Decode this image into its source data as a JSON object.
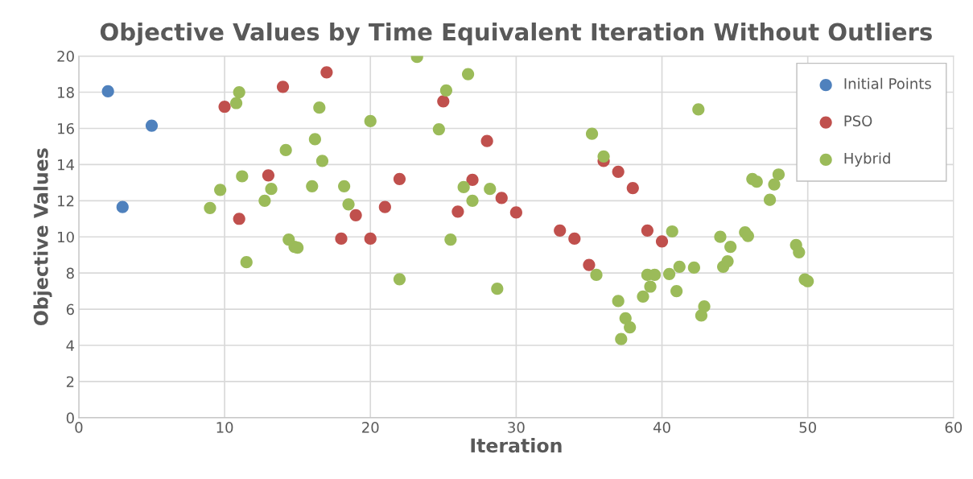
{
  "chart_data": {
    "type": "scatter",
    "title": "Objective Values by Time Equivalent Iteration Without Outliers",
    "xlabel": "Iteration",
    "ylabel": "Objective Values",
    "xlim": [
      0,
      60
    ],
    "xticks": [
      0,
      10,
      20,
      30,
      40,
      50,
      60
    ],
    "ylim": [
      0,
      20
    ],
    "yticks": [
      0,
      2,
      4,
      6,
      8,
      10,
      12,
      14,
      16,
      18,
      20
    ],
    "grid": true,
    "legend": "top right",
    "marker": "circle",
    "series": [
      {
        "name": "Initial Points",
        "color": "#4f81bd",
        "x": [
          2,
          5,
          3
        ],
        "values": [
          18.05,
          16.15,
          11.65
        ]
      },
      {
        "name": "PSO",
        "color": "#c0504d",
        "x": [
          10,
          11,
          13,
          14,
          17,
          18,
          19,
          20,
          21,
          22,
          25,
          26,
          27,
          28,
          29,
          30,
          33,
          34,
          35,
          36,
          37,
          38,
          39,
          40
        ],
        "values": [
          17.2,
          11.0,
          13.4,
          18.3,
          19.1,
          9.9,
          11.2,
          9.9,
          11.65,
          13.2,
          17.5,
          11.4,
          13.15,
          15.3,
          12.15,
          11.35,
          10.35,
          9.9,
          8.45,
          14.2,
          13.6,
          12.7,
          10.35,
          9.75
        ]
      },
      {
        "name": "Hybrid",
        "color": "#9bbb59",
        "x": [
          9.0,
          9.7,
          11.0,
          10.8,
          11.2,
          11.5,
          12.75,
          13.2,
          14.2,
          14.4,
          14.8,
          15.0,
          16.0,
          16.2,
          16.5,
          16.7,
          18.2,
          18.5,
          20.0,
          22.0,
          25.5,
          24.7,
          25.2,
          23.2,
          26.7,
          26.4,
          27.0,
          28.2,
          28.7,
          35.2,
          36.0,
          35.5,
          37.0,
          37.2,
          37.5,
          37.8,
          38.7,
          39.0,
          39.2,
          39.5,
          40.5,
          40.7,
          41.0,
          41.2,
          42.2,
          42.5,
          42.7,
          42.9,
          44.0,
          44.2,
          44.5,
          44.7,
          45.7,
          45.9,
          46.2,
          46.5,
          47.4,
          47.7,
          48.0,
          49.2,
          49.4,
          49.8,
          50.0
        ],
        "values": [
          11.6,
          12.6,
          18.0,
          17.4,
          13.35,
          8.6,
          12.0,
          12.65,
          14.8,
          9.85,
          9.45,
          9.4,
          12.8,
          15.4,
          17.15,
          14.2,
          12.8,
          11.8,
          16.4,
          7.66,
          9.85,
          15.95,
          18.1,
          19.95,
          19.0,
          12.75,
          12.0,
          12.65,
          7.13,
          15.7,
          14.45,
          7.9,
          6.45,
          4.35,
          5.5,
          5.0,
          6.7,
          7.9,
          7.25,
          7.9,
          7.95,
          10.3,
          7.0,
          8.35,
          8.3,
          17.05,
          5.65,
          6.15,
          10.0,
          8.35,
          8.65,
          9.45,
          10.25,
          10.05,
          13.2,
          13.05,
          12.05,
          12.9,
          13.45,
          9.55,
          9.15,
          7.65,
          7.55
        ]
      }
    ]
  }
}
